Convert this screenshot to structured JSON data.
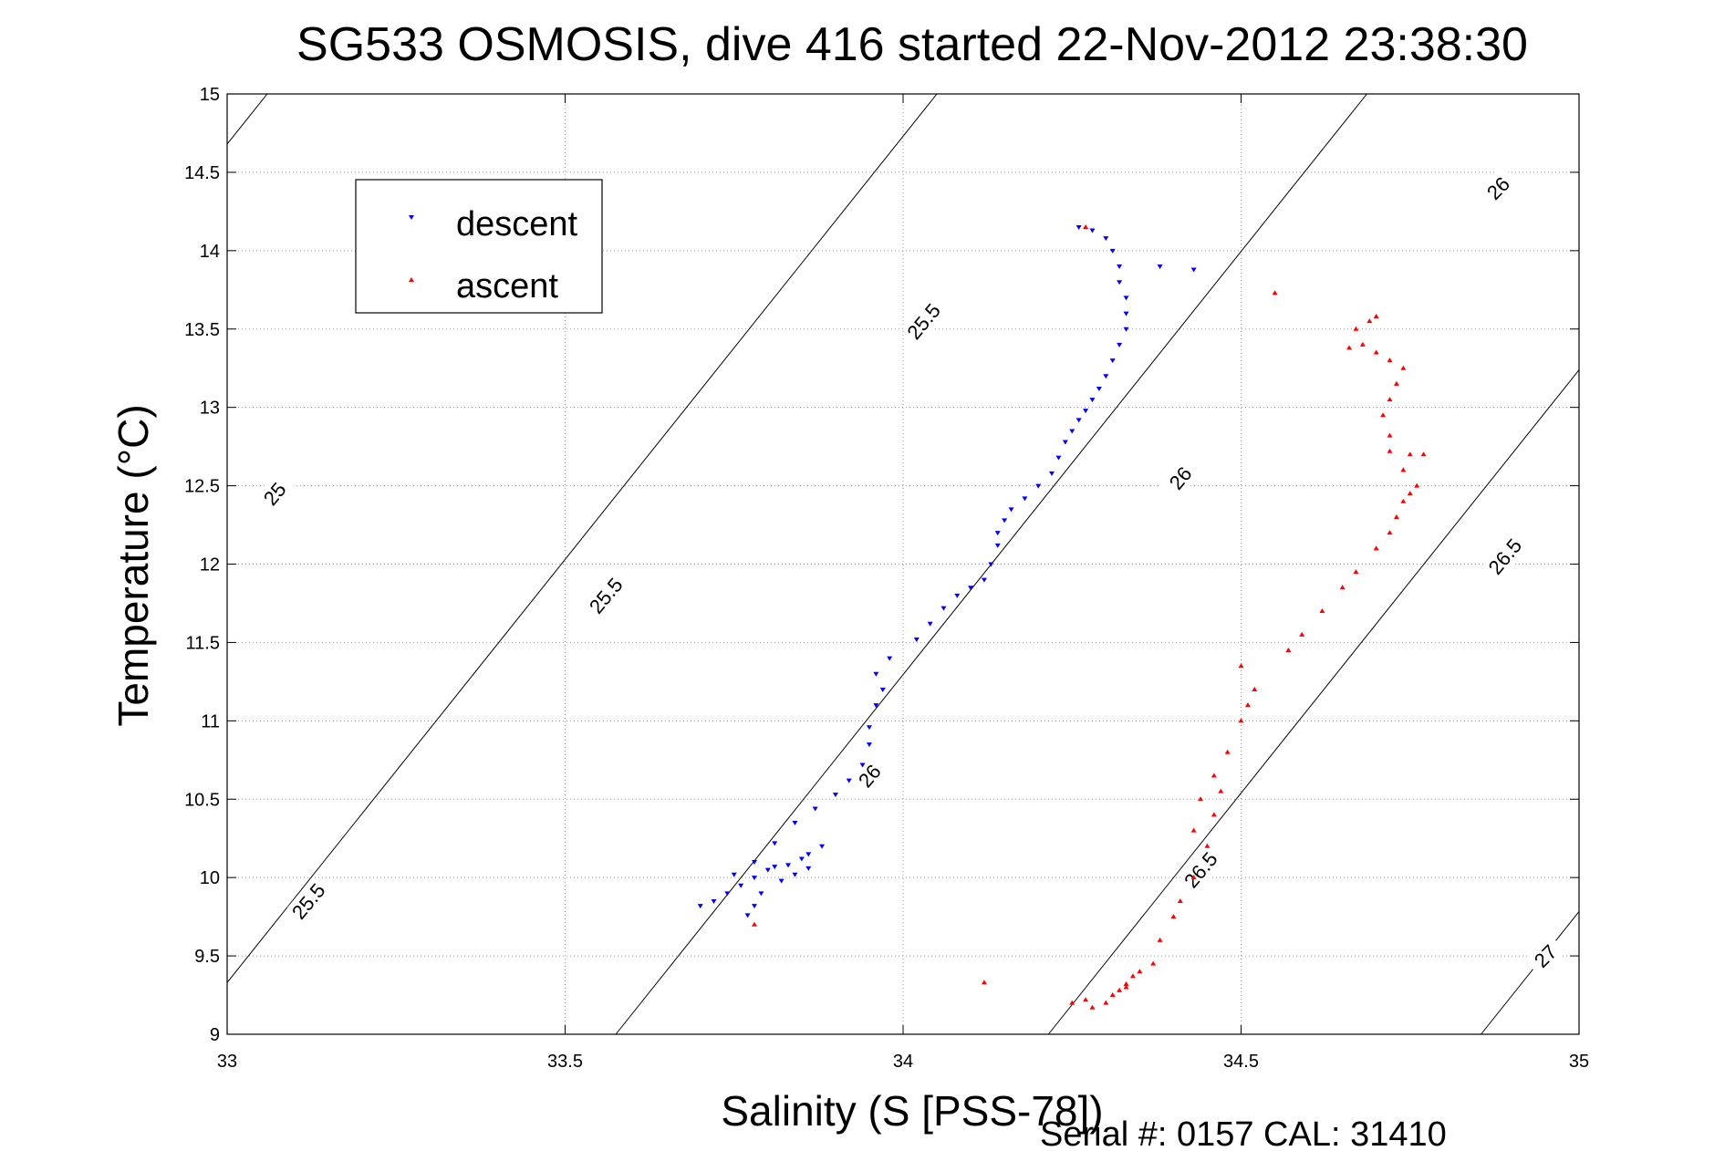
{
  "chart_data": {
    "type": "scatter",
    "title": "SG533 OSMOSIS, dive 416 started 22-Nov-2012 23:38:30",
    "xlabel": "Salinity (S [PSS-78])",
    "ylabel": "Temperature (°C)",
    "footer": "Serial #: 0157  CAL: 31410",
    "xlim": [
      33,
      35
    ],
    "ylim": [
      9,
      15
    ],
    "xticks": [
      "33",
      "33.5",
      "34",
      "34.5",
      "35"
    ],
    "yticks": [
      "9",
      "9.5",
      "10",
      "10.5",
      "11",
      "11.5",
      "12",
      "12.5",
      "13",
      "13.5",
      "14",
      "14.5",
      "15"
    ],
    "grid": true,
    "legend_position": "top-left",
    "series": [
      {
        "name": "descent",
        "color": "#0000ff",
        "marker": "triangle-down",
        "points": [
          [
            33.7,
            9.82
          ],
          [
            33.72,
            9.85
          ],
          [
            33.74,
            9.9
          ],
          [
            33.76,
            9.95
          ],
          [
            33.78,
            10.0
          ],
          [
            33.8,
            10.05
          ],
          [
            33.83,
            10.08
          ],
          [
            33.86,
            10.15
          ],
          [
            33.88,
            10.2
          ],
          [
            33.85,
            10.12
          ],
          [
            33.81,
            10.07
          ],
          [
            33.78,
            9.82
          ],
          [
            33.77,
            9.76
          ],
          [
            33.79,
            9.9
          ],
          [
            33.82,
            9.98
          ],
          [
            33.84,
            10.02
          ],
          [
            33.86,
            10.06
          ],
          [
            33.75,
            10.02
          ],
          [
            33.78,
            10.1
          ],
          [
            33.81,
            10.22
          ],
          [
            33.84,
            10.35
          ],
          [
            33.87,
            10.44
          ],
          [
            33.9,
            10.53
          ],
          [
            33.92,
            10.62
          ],
          [
            33.94,
            10.72
          ],
          [
            33.95,
            10.85
          ],
          [
            33.95,
            10.96
          ],
          [
            33.96,
            11.1
          ],
          [
            33.97,
            11.2
          ],
          [
            33.96,
            11.3
          ],
          [
            33.98,
            11.4
          ],
          [
            34.02,
            11.52
          ],
          [
            34.04,
            11.62
          ],
          [
            34.06,
            11.72
          ],
          [
            34.08,
            11.8
          ],
          [
            34.1,
            11.85
          ],
          [
            34.12,
            11.9
          ],
          [
            34.13,
            12.0
          ],
          [
            34.14,
            12.12
          ],
          [
            34.14,
            12.2
          ],
          [
            34.15,
            12.28
          ],
          [
            34.16,
            12.35
          ],
          [
            34.18,
            12.42
          ],
          [
            34.2,
            12.5
          ],
          [
            34.22,
            12.58
          ],
          [
            34.23,
            12.68
          ],
          [
            34.24,
            12.78
          ],
          [
            34.25,
            12.85
          ],
          [
            34.26,
            12.92
          ],
          [
            34.27,
            12.98
          ],
          [
            34.28,
            13.05
          ],
          [
            34.29,
            13.12
          ],
          [
            34.3,
            13.2
          ],
          [
            34.31,
            13.3
          ],
          [
            34.32,
            13.4
          ],
          [
            34.33,
            13.5
          ],
          [
            34.33,
            13.6
          ],
          [
            34.33,
            13.7
          ],
          [
            34.32,
            13.8
          ],
          [
            34.32,
            13.9
          ],
          [
            34.31,
            14.0
          ],
          [
            34.3,
            14.08
          ],
          [
            34.28,
            14.13
          ],
          [
            34.26,
            14.15
          ],
          [
            34.38,
            13.9
          ],
          [
            34.43,
            13.88
          ]
        ]
      },
      {
        "name": "ascent",
        "color": "#ff0000",
        "marker": "triangle-up",
        "points": [
          [
            34.12,
            9.33
          ],
          [
            34.25,
            9.2
          ],
          [
            34.27,
            9.22
          ],
          [
            34.3,
            9.2
          ],
          [
            34.28,
            9.17
          ],
          [
            34.31,
            9.25
          ],
          [
            34.33,
            9.32
          ],
          [
            34.35,
            9.4
          ],
          [
            34.37,
            9.45
          ],
          [
            34.34,
            9.37
          ],
          [
            34.33,
            9.3
          ],
          [
            34.32,
            9.28
          ],
          [
            34.38,
            9.6
          ],
          [
            34.4,
            9.75
          ],
          [
            34.41,
            9.85
          ],
          [
            34.43,
            10.0
          ],
          [
            34.45,
            10.2
          ],
          [
            34.46,
            10.4
          ],
          [
            34.47,
            10.55
          ],
          [
            34.46,
            10.65
          ],
          [
            34.44,
            10.5
          ],
          [
            34.43,
            10.3
          ],
          [
            34.48,
            10.8
          ],
          [
            34.5,
            11.0
          ],
          [
            34.51,
            11.1
          ],
          [
            34.52,
            11.2
          ],
          [
            34.5,
            11.35
          ],
          [
            34.57,
            11.45
          ],
          [
            34.59,
            11.55
          ],
          [
            34.62,
            11.7
          ],
          [
            34.65,
            11.85
          ],
          [
            34.67,
            11.95
          ],
          [
            34.7,
            12.1
          ],
          [
            34.72,
            12.2
          ],
          [
            34.73,
            12.3
          ],
          [
            34.74,
            12.4
          ],
          [
            34.75,
            12.45
          ],
          [
            34.76,
            12.5
          ],
          [
            34.74,
            12.6
          ],
          [
            34.72,
            12.72
          ],
          [
            34.75,
            12.7
          ],
          [
            34.77,
            12.7
          ],
          [
            34.72,
            12.82
          ],
          [
            34.71,
            12.95
          ],
          [
            34.72,
            13.05
          ],
          [
            34.73,
            13.15
          ],
          [
            34.74,
            13.25
          ],
          [
            34.72,
            13.3
          ],
          [
            34.7,
            13.35
          ],
          [
            34.68,
            13.4
          ],
          [
            34.66,
            13.38
          ],
          [
            34.67,
            13.5
          ],
          [
            34.7,
            13.58
          ],
          [
            34.69,
            13.55
          ],
          [
            34.55,
            13.73
          ],
          [
            34.27,
            14.15
          ],
          [
            33.78,
            9.7
          ]
        ]
      }
    ],
    "contours": [
      {
        "label": "25",
        "sigma": 25.0
      },
      {
        "label": "25.5",
        "sigma": 25.5
      },
      {
        "label": "26",
        "sigma": 26.0
      },
      {
        "label": "26.5",
        "sigma": 26.5
      },
      {
        "label": "27",
        "sigma": 27.0
      }
    ],
    "contour_label_positions": [
      {
        "text": "25",
        "s": 33.07,
        "t": 12.45,
        "angle": -50
      },
      {
        "text": "25.5",
        "s": 33.12,
        "t": 9.85,
        "angle": -50
      },
      {
        "text": "25.5",
        "s": 33.56,
        "t": 11.8,
        "angle": -50
      },
      {
        "text": "25.5",
        "s": 34.03,
        "t": 13.55,
        "angle": -50
      },
      {
        "text": "26",
        "s": 33.95,
        "t": 10.65,
        "angle": -50
      },
      {
        "text": "26",
        "s": 34.41,
        "t": 12.55,
        "angle": -50
      },
      {
        "text": "26",
        "s": 34.88,
        "t": 14.4,
        "angle": -45
      },
      {
        "text": "26.5",
        "s": 34.44,
        "t": 10.05,
        "angle": -50
      },
      {
        "text": "26.5",
        "s": 34.89,
        "t": 12.05,
        "angle": -50
      },
      {
        "text": "27",
        "s": 34.95,
        "t": 9.5,
        "angle": -45
      }
    ]
  }
}
